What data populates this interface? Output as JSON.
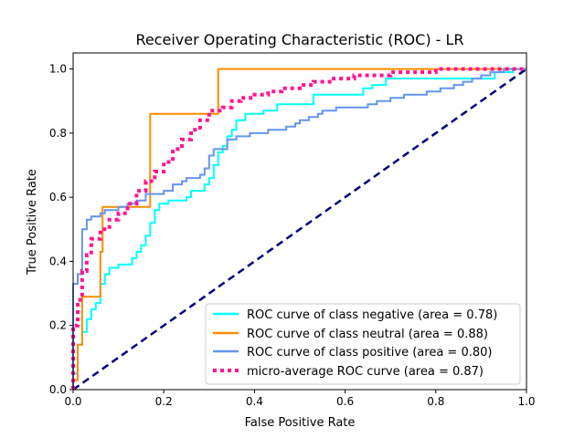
{
  "chart_data": {
    "type": "line",
    "title": "Receiver Operating Characteristic (ROC) - LR",
    "xlabel": "False Positive Rate",
    "ylabel": "True Positive Rate",
    "xlim": [
      0.0,
      1.0
    ],
    "ylim": [
      0.0,
      1.05
    ],
    "xticks": [
      "0.0",
      "0.2",
      "0.4",
      "0.6",
      "0.8",
      "1.0"
    ],
    "yticks": [
      "0.0",
      "0.2",
      "0.4",
      "0.6",
      "0.8",
      "1.0"
    ],
    "grid": false,
    "legend_position": "lower-right",
    "series": [
      {
        "name": "ROC curve of class negative (area = 0.78)",
        "color": "#00ffff",
        "style": "solid",
        "points": [
          [
            0.0,
            0.0
          ],
          [
            0.0,
            0.05
          ],
          [
            0.01,
            0.05
          ],
          [
            0.01,
            0.14
          ],
          [
            0.02,
            0.14
          ],
          [
            0.02,
            0.18
          ],
          [
            0.03,
            0.18
          ],
          [
            0.03,
            0.22
          ],
          [
            0.04,
            0.22
          ],
          [
            0.04,
            0.25
          ],
          [
            0.05,
            0.25
          ],
          [
            0.05,
            0.27
          ],
          [
            0.06,
            0.27
          ],
          [
            0.06,
            0.33
          ],
          [
            0.07,
            0.33
          ],
          [
            0.07,
            0.36
          ],
          [
            0.08,
            0.36
          ],
          [
            0.08,
            0.38
          ],
          [
            0.1,
            0.38
          ],
          [
            0.1,
            0.39
          ],
          [
            0.13,
            0.39
          ],
          [
            0.13,
            0.41
          ],
          [
            0.14,
            0.41
          ],
          [
            0.14,
            0.43
          ],
          [
            0.15,
            0.43
          ],
          [
            0.15,
            0.45
          ],
          [
            0.16,
            0.45
          ],
          [
            0.16,
            0.48
          ],
          [
            0.17,
            0.48
          ],
          [
            0.17,
            0.52
          ],
          [
            0.18,
            0.52
          ],
          [
            0.18,
            0.56
          ],
          [
            0.19,
            0.56
          ],
          [
            0.19,
            0.58
          ],
          [
            0.21,
            0.58
          ],
          [
            0.21,
            0.59
          ],
          [
            0.25,
            0.59
          ],
          [
            0.25,
            0.6
          ],
          [
            0.26,
            0.6
          ],
          [
            0.26,
            0.62
          ],
          [
            0.29,
            0.62
          ],
          [
            0.29,
            0.64
          ],
          [
            0.3,
            0.64
          ],
          [
            0.3,
            0.66
          ],
          [
            0.31,
            0.66
          ],
          [
            0.31,
            0.7
          ],
          [
            0.32,
            0.7
          ],
          [
            0.32,
            0.74
          ],
          [
            0.33,
            0.74
          ],
          [
            0.33,
            0.76
          ],
          [
            0.34,
            0.76
          ],
          [
            0.34,
            0.79
          ],
          [
            0.35,
            0.79
          ],
          [
            0.35,
            0.81
          ],
          [
            0.36,
            0.81
          ],
          [
            0.36,
            0.84
          ],
          [
            0.38,
            0.84
          ],
          [
            0.38,
            0.86
          ],
          [
            0.42,
            0.86
          ],
          [
            0.42,
            0.87
          ],
          [
            0.45,
            0.87
          ],
          [
            0.45,
            0.89
          ],
          [
            0.53,
            0.89
          ],
          [
            0.53,
            0.92
          ],
          [
            0.64,
            0.92
          ],
          [
            0.64,
            0.94
          ],
          [
            0.66,
            0.94
          ],
          [
            0.66,
            0.95
          ],
          [
            0.69,
            0.95
          ],
          [
            0.69,
            0.97
          ],
          [
            0.93,
            0.97
          ],
          [
            0.93,
            0.99
          ],
          [
            0.97,
            0.99
          ],
          [
            0.97,
            1.0
          ],
          [
            1.0,
            1.0
          ]
        ]
      },
      {
        "name": "ROC curve of class neutral (area = 0.88)",
        "color": "#ff8c00",
        "style": "solid",
        "points": [
          [
            0.0,
            0.0
          ],
          [
            0.0,
            0.03
          ],
          [
            0.01,
            0.03
          ],
          [
            0.01,
            0.14
          ],
          [
            0.02,
            0.14
          ],
          [
            0.02,
            0.29
          ],
          [
            0.06,
            0.29
          ],
          [
            0.06,
            0.43
          ],
          [
            0.065,
            0.43
          ],
          [
            0.065,
            0.57
          ],
          [
            0.17,
            0.57
          ],
          [
            0.17,
            0.86
          ],
          [
            0.32,
            0.86
          ],
          [
            0.32,
            1.0
          ],
          [
            1.0,
            1.0
          ]
        ]
      },
      {
        "name": "ROC curve of class positive (area = 0.80)",
        "color": "#6495ed",
        "style": "solid",
        "points": [
          [
            0.0,
            0.0
          ],
          [
            0.0,
            0.33
          ],
          [
            0.01,
            0.33
          ],
          [
            0.01,
            0.36
          ],
          [
            0.02,
            0.36
          ],
          [
            0.02,
            0.5
          ],
          [
            0.03,
            0.5
          ],
          [
            0.03,
            0.53
          ],
          [
            0.04,
            0.53
          ],
          [
            0.04,
            0.54
          ],
          [
            0.06,
            0.54
          ],
          [
            0.06,
            0.55
          ],
          [
            0.07,
            0.55
          ],
          [
            0.07,
            0.56
          ],
          [
            0.1,
            0.56
          ],
          [
            0.1,
            0.57
          ],
          [
            0.12,
            0.57
          ],
          [
            0.12,
            0.58
          ],
          [
            0.14,
            0.58
          ],
          [
            0.14,
            0.59
          ],
          [
            0.16,
            0.59
          ],
          [
            0.16,
            0.61
          ],
          [
            0.2,
            0.61
          ],
          [
            0.2,
            0.62
          ],
          [
            0.22,
            0.62
          ],
          [
            0.22,
            0.64
          ],
          [
            0.24,
            0.64
          ],
          [
            0.24,
            0.65
          ],
          [
            0.25,
            0.65
          ],
          [
            0.25,
            0.66
          ],
          [
            0.28,
            0.66
          ],
          [
            0.28,
            0.67
          ],
          [
            0.29,
            0.67
          ],
          [
            0.29,
            0.69
          ],
          [
            0.3,
            0.69
          ],
          [
            0.3,
            0.73
          ],
          [
            0.31,
            0.73
          ],
          [
            0.31,
            0.75
          ],
          [
            0.34,
            0.75
          ],
          [
            0.34,
            0.78
          ],
          [
            0.36,
            0.78
          ],
          [
            0.36,
            0.79
          ],
          [
            0.39,
            0.79
          ],
          [
            0.39,
            0.8
          ],
          [
            0.43,
            0.8
          ],
          [
            0.43,
            0.81
          ],
          [
            0.47,
            0.81
          ],
          [
            0.47,
            0.82
          ],
          [
            0.49,
            0.82
          ],
          [
            0.49,
            0.83
          ],
          [
            0.5,
            0.83
          ],
          [
            0.5,
            0.84
          ],
          [
            0.52,
            0.84
          ],
          [
            0.52,
            0.85
          ],
          [
            0.54,
            0.85
          ],
          [
            0.54,
            0.86
          ],
          [
            0.55,
            0.86
          ],
          [
            0.55,
            0.87
          ],
          [
            0.58,
            0.87
          ],
          [
            0.58,
            0.88
          ],
          [
            0.65,
            0.88
          ],
          [
            0.65,
            0.89
          ],
          [
            0.67,
            0.89
          ],
          [
            0.67,
            0.9
          ],
          [
            0.7,
            0.9
          ],
          [
            0.7,
            0.91
          ],
          [
            0.73,
            0.91
          ],
          [
            0.73,
            0.92
          ],
          [
            0.78,
            0.92
          ],
          [
            0.78,
            0.93
          ],
          [
            0.81,
            0.93
          ],
          [
            0.81,
            0.94
          ],
          [
            0.84,
            0.94
          ],
          [
            0.84,
            0.95
          ],
          [
            0.86,
            0.95
          ],
          [
            0.86,
            0.96
          ],
          [
            0.88,
            0.96
          ],
          [
            0.88,
            0.97
          ],
          [
            0.9,
            0.97
          ],
          [
            0.9,
            0.98
          ],
          [
            0.92,
            0.98
          ],
          [
            0.92,
            0.99
          ],
          [
            0.95,
            0.99
          ],
          [
            0.95,
            1.0
          ],
          [
            1.0,
            1.0
          ]
        ]
      },
      {
        "name": "micro-average ROC curve (area = 0.87)",
        "color": "#ff1493",
        "style": "dotted",
        "points": [
          [
            0.0,
            0.0
          ],
          [
            0.0,
            0.2
          ],
          [
            0.01,
            0.2
          ],
          [
            0.01,
            0.28
          ],
          [
            0.02,
            0.28
          ],
          [
            0.02,
            0.37
          ],
          [
            0.03,
            0.37
          ],
          [
            0.03,
            0.42
          ],
          [
            0.04,
            0.42
          ],
          [
            0.04,
            0.47
          ],
          [
            0.06,
            0.47
          ],
          [
            0.06,
            0.5
          ],
          [
            0.08,
            0.5
          ],
          [
            0.08,
            0.53
          ],
          [
            0.1,
            0.53
          ],
          [
            0.1,
            0.55
          ],
          [
            0.12,
            0.55
          ],
          [
            0.12,
            0.58
          ],
          [
            0.14,
            0.58
          ],
          [
            0.14,
            0.62
          ],
          [
            0.16,
            0.62
          ],
          [
            0.16,
            0.65
          ],
          [
            0.18,
            0.65
          ],
          [
            0.18,
            0.68
          ],
          [
            0.2,
            0.68
          ],
          [
            0.2,
            0.71
          ],
          [
            0.22,
            0.71
          ],
          [
            0.22,
            0.75
          ],
          [
            0.24,
            0.75
          ],
          [
            0.24,
            0.78
          ],
          [
            0.26,
            0.78
          ],
          [
            0.26,
            0.81
          ],
          [
            0.28,
            0.81
          ],
          [
            0.28,
            0.84
          ],
          [
            0.3,
            0.84
          ],
          [
            0.3,
            0.87
          ],
          [
            0.33,
            0.87
          ],
          [
            0.33,
            0.88
          ],
          [
            0.35,
            0.88
          ],
          [
            0.35,
            0.9
          ],
          [
            0.37,
            0.9
          ],
          [
            0.37,
            0.91
          ],
          [
            0.4,
            0.91
          ],
          [
            0.4,
            0.92
          ],
          [
            0.43,
            0.92
          ],
          [
            0.43,
            0.93
          ],
          [
            0.46,
            0.93
          ],
          [
            0.46,
            0.94
          ],
          [
            0.5,
            0.94
          ],
          [
            0.5,
            0.95
          ],
          [
            0.53,
            0.95
          ],
          [
            0.53,
            0.96
          ],
          [
            0.57,
            0.96
          ],
          [
            0.57,
            0.97
          ],
          [
            0.62,
            0.97
          ],
          [
            0.62,
            0.98
          ],
          [
            0.7,
            0.98
          ],
          [
            0.7,
            0.99
          ],
          [
            0.8,
            0.99
          ],
          [
            0.8,
            1.0
          ],
          [
            1.0,
            1.0
          ]
        ]
      },
      {
        "name": "",
        "color": "#000080",
        "style": "dashed",
        "points": [
          [
            0.0,
            0.0
          ],
          [
            1.0,
            1.0
          ]
        ]
      }
    ]
  }
}
